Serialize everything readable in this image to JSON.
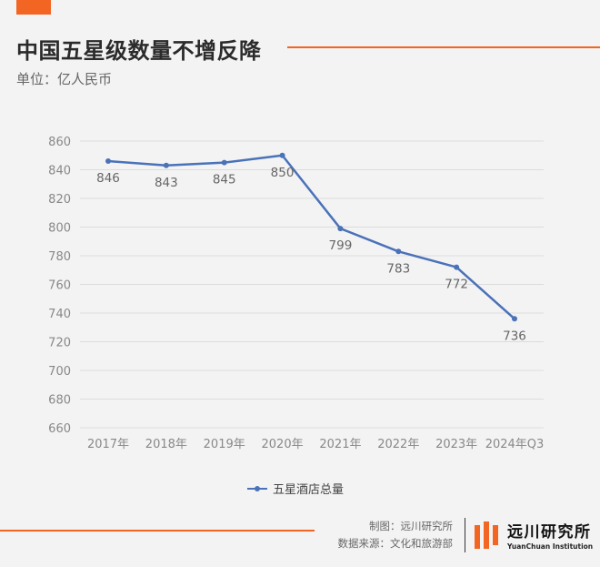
{
  "header": {
    "title": "中国五星级数量不增反降",
    "subtitle": "单位：亿人民币"
  },
  "colors": {
    "accent": "#f26522",
    "series": "#4a72b8",
    "grid": "#dcdcdc",
    "axis_text": "#888888"
  },
  "chart_data": {
    "type": "line",
    "title": "中国五星级数量不增反降",
    "subtitle": "单位：亿人民币",
    "categories": [
      "2017年",
      "2018年",
      "2019年",
      "2020年",
      "2021年",
      "2022年",
      "2023年",
      "2024年Q3"
    ],
    "series": [
      {
        "name": "五星酒店总量",
        "values": [
          846,
          843,
          845,
          850,
          799,
          783,
          772,
          736
        ]
      }
    ],
    "ylim": [
      660,
      860
    ],
    "yticks": [
      660,
      680,
      700,
      720,
      740,
      760,
      780,
      800,
      820,
      840,
      860
    ],
    "grid": true,
    "legend_position": "bottom"
  },
  "legend": {
    "label": "五星酒店总量"
  },
  "footer": {
    "credit": "制图：远川研究所",
    "source": "数据来源：文化和旅游部",
    "logo_cn": "远川研究所",
    "logo_en": "YuanChuan Institution"
  }
}
